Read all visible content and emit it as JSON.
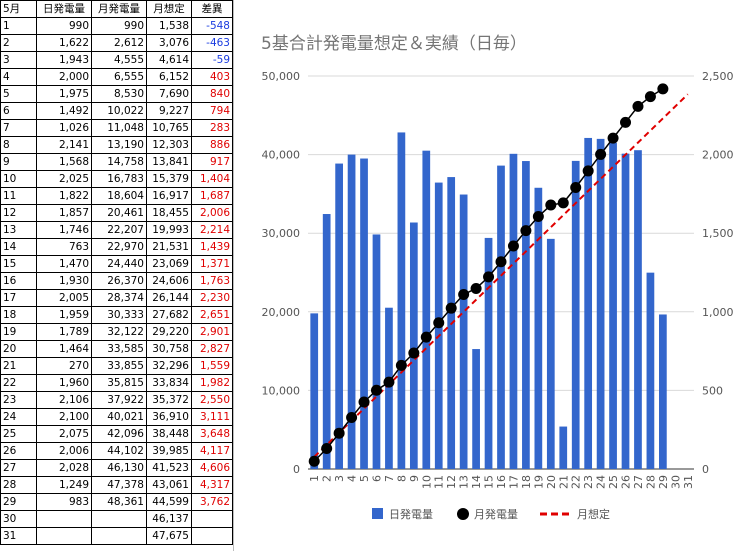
{
  "table": {
    "headers": [
      "5月",
      "日発電量",
      "月発電量",
      "月想定",
      "差異"
    ],
    "rows": [
      {
        "day": "1",
        "daily": "990",
        "monthly": "990",
        "expected": "1,538",
        "diff": "-548",
        "sign": "neg"
      },
      {
        "day": "2",
        "daily": "1,622",
        "monthly": "2,612",
        "expected": "3,076",
        "diff": "-463",
        "sign": "neg"
      },
      {
        "day": "3",
        "daily": "1,943",
        "monthly": "4,555",
        "expected": "4,614",
        "diff": "-59",
        "sign": "neg"
      },
      {
        "day": "4",
        "daily": "2,000",
        "monthly": "6,555",
        "expected": "6,152",
        "diff": "403",
        "sign": "pos"
      },
      {
        "day": "5",
        "daily": "1,975",
        "monthly": "8,530",
        "expected": "7,690",
        "diff": "840",
        "sign": "pos"
      },
      {
        "day": "6",
        "daily": "1,492",
        "monthly": "10,022",
        "expected": "9,227",
        "diff": "794",
        "sign": "pos"
      },
      {
        "day": "7",
        "daily": "1,026",
        "monthly": "11,048",
        "expected": "10,765",
        "diff": "283",
        "sign": "pos"
      },
      {
        "day": "8",
        "daily": "2,141",
        "monthly": "13,190",
        "expected": "12,303",
        "diff": "886",
        "sign": "pos"
      },
      {
        "day": "9",
        "daily": "1,568",
        "monthly": "14,758",
        "expected": "13,841",
        "diff": "917",
        "sign": "pos"
      },
      {
        "day": "10",
        "daily": "2,025",
        "monthly": "16,783",
        "expected": "15,379",
        "diff": "1,404",
        "sign": "pos"
      },
      {
        "day": "11",
        "daily": "1,822",
        "monthly": "18,604",
        "expected": "16,917",
        "diff": "1,687",
        "sign": "pos"
      },
      {
        "day": "12",
        "daily": "1,857",
        "monthly": "20,461",
        "expected": "18,455",
        "diff": "2,006",
        "sign": "pos"
      },
      {
        "day": "13",
        "daily": "1,746",
        "monthly": "22,207",
        "expected": "19,993",
        "diff": "2,214",
        "sign": "pos"
      },
      {
        "day": "14",
        "daily": "763",
        "monthly": "22,970",
        "expected": "21,531",
        "diff": "1,439",
        "sign": "pos"
      },
      {
        "day": "15",
        "daily": "1,470",
        "monthly": "24,440",
        "expected": "23,069",
        "diff": "1,371",
        "sign": "pos"
      },
      {
        "day": "16",
        "daily": "1,930",
        "monthly": "26,370",
        "expected": "24,606",
        "diff": "1,763",
        "sign": "pos"
      },
      {
        "day": "17",
        "daily": "2,005",
        "monthly": "28,374",
        "expected": "26,144",
        "diff": "2,230",
        "sign": "pos"
      },
      {
        "day": "18",
        "daily": "1,959",
        "monthly": "30,333",
        "expected": "27,682",
        "diff": "2,651",
        "sign": "pos"
      },
      {
        "day": "19",
        "daily": "1,789",
        "monthly": "32,122",
        "expected": "29,220",
        "diff": "2,901",
        "sign": "pos"
      },
      {
        "day": "20",
        "daily": "1,464",
        "monthly": "33,585",
        "expected": "30,758",
        "diff": "2,827",
        "sign": "pos"
      },
      {
        "day": "21",
        "daily": "270",
        "monthly": "33,855",
        "expected": "32,296",
        "diff": "1,559",
        "sign": "pos"
      },
      {
        "day": "22",
        "daily": "1,960",
        "monthly": "35,815",
        "expected": "33,834",
        "diff": "1,982",
        "sign": "pos"
      },
      {
        "day": "23",
        "daily": "2,106",
        "monthly": "37,922",
        "expected": "35,372",
        "diff": "2,550",
        "sign": "pos"
      },
      {
        "day": "24",
        "daily": "2,100",
        "monthly": "40,021",
        "expected": "36,910",
        "diff": "3,111",
        "sign": "pos"
      },
      {
        "day": "25",
        "daily": "2,075",
        "monthly": "42,096",
        "expected": "38,448",
        "diff": "3,648",
        "sign": "pos"
      },
      {
        "day": "26",
        "daily": "2,006",
        "monthly": "44,102",
        "expected": "39,985",
        "diff": "4,117",
        "sign": "pos"
      },
      {
        "day": "27",
        "daily": "2,028",
        "monthly": "46,130",
        "expected": "41,523",
        "diff": "4,606",
        "sign": "pos"
      },
      {
        "day": "28",
        "daily": "1,249",
        "monthly": "47,378",
        "expected": "43,061",
        "diff": "4,317",
        "sign": "pos"
      },
      {
        "day": "29",
        "daily": "983",
        "monthly": "48,361",
        "expected": "44,599",
        "diff": "3,762",
        "sign": "pos"
      },
      {
        "day": "30",
        "daily": "",
        "monthly": "",
        "expected": "46,137",
        "diff": "",
        "sign": "pos"
      },
      {
        "day": "31",
        "daily": "",
        "monthly": "",
        "expected": "47,675",
        "diff": "",
        "sign": "pos"
      }
    ]
  },
  "chart_data": {
    "type": "bar+line",
    "title": "5基合計発電量想定＆実績（日毎）",
    "categories": [
      "1",
      "2",
      "3",
      "4",
      "5",
      "6",
      "7",
      "8",
      "9",
      "10",
      "11",
      "12",
      "13",
      "14",
      "15",
      "16",
      "17",
      "18",
      "19",
      "20",
      "21",
      "22",
      "23",
      "24",
      "25",
      "26",
      "27",
      "28",
      "29",
      "30",
      "31"
    ],
    "left_axis": {
      "min": 0,
      "max": 50000,
      "ticks": [
        "0",
        "10,000",
        "20,000",
        "30,000",
        "40,000",
        "50,000"
      ],
      "tick_values": [
        0,
        10000,
        20000,
        30000,
        40000,
        50000
      ]
    },
    "right_axis": {
      "min": 0,
      "max": 2500,
      "ticks": [
        "0",
        "500",
        "1,000",
        "1,500",
        "2,000",
        "2,500"
      ],
      "tick_values": [
        0,
        500,
        1000,
        1500,
        2000,
        2500
      ]
    },
    "series": [
      {
        "name": "日発電量",
        "type": "bar",
        "axis": "right",
        "color": "#3366cc",
        "values": [
          990,
          1622,
          1943,
          2000,
          1975,
          1492,
          1026,
          2141,
          1568,
          2025,
          1822,
          1857,
          1746,
          763,
          1470,
          1930,
          2005,
          1959,
          1789,
          1464,
          270,
          1960,
          2106,
          2100,
          2075,
          2006,
          2028,
          1249,
          983,
          null,
          null
        ]
      },
      {
        "name": "月発電量",
        "type": "line-markers",
        "axis": "left",
        "color": "#000000",
        "values": [
          990,
          2612,
          4555,
          6555,
          8530,
          10022,
          11048,
          13190,
          14758,
          16783,
          18604,
          20461,
          22207,
          22970,
          24440,
          26370,
          28374,
          30333,
          32122,
          33585,
          33855,
          35815,
          37922,
          40021,
          42096,
          44102,
          46130,
          47378,
          48361,
          null,
          null
        ]
      },
      {
        "name": "月想定",
        "type": "dashed-line",
        "axis": "left",
        "color": "#e00000",
        "values": [
          1538,
          3076,
          4614,
          6152,
          7690,
          9227,
          10765,
          12303,
          13841,
          15379,
          16917,
          18455,
          19993,
          21531,
          23069,
          24606,
          26144,
          27682,
          29220,
          30758,
          32296,
          33834,
          35372,
          36910,
          38448,
          39985,
          41523,
          43061,
          44599,
          46137,
          47675
        ]
      }
    ],
    "legend": "bottom",
    "grid": true
  }
}
